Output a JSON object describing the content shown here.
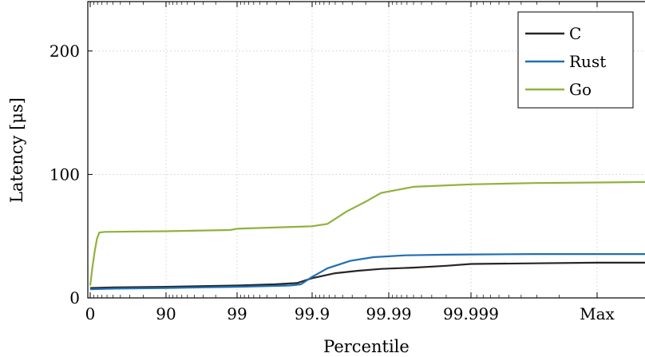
{
  "chart_data": {
    "type": "line",
    "xlabel": "Percentile",
    "ylabel": "Latency [μs]",
    "x_ticks": [
      "0",
      "90",
      "99",
      "99.9",
      "99.99",
      "99.999",
      "Max"
    ],
    "y_ticks": [
      0,
      100,
      200
    ],
    "ylim": [
      0,
      240
    ],
    "grid": true,
    "legend_position": "top-right",
    "series": [
      {
        "name": "C",
        "color": "#262626",
        "x": [
          0,
          0.3,
          1,
          2,
          2.5,
          2.8,
          3.0,
          3.3,
          3.6,
          3.9,
          4.3,
          4.7,
          5.0,
          5.5,
          6.0,
          6.5
        ],
        "y": [
          8,
          8.5,
          9,
          10,
          11,
          12,
          16,
          20,
          22,
          23.5,
          24.5,
          26,
          27.5,
          28,
          28.5,
          28.5
        ]
      },
      {
        "name": "Rust",
        "color": "#1f6fb4",
        "x": [
          0,
          0.3,
          1,
          2,
          2.7,
          2.85,
          3.0,
          3.2,
          3.5,
          3.8,
          4.2,
          4.7,
          5.0,
          5.5,
          6.0,
          6.5
        ],
        "y": [
          7,
          7.5,
          8,
          9,
          10,
          11,
          17,
          24,
          30,
          33,
          34.5,
          35,
          35.2,
          35.5,
          35.5,
          35.5
        ]
      },
      {
        "name": "Go",
        "color": "#8db33c",
        "x": [
          0,
          0.03,
          0.06,
          0.09,
          0.12,
          0.2,
          1,
          1.9,
          2.0,
          3.0,
          3.2,
          3.45,
          3.7,
          3.9,
          4.3,
          5.0,
          5.5,
          6.0,
          6.5
        ],
        "y": [
          10,
          25,
          38,
          48,
          53,
          53.5,
          54,
          55,
          56,
          58,
          60,
          70,
          78,
          85,
          90,
          92,
          93,
          93.5,
          94
        ]
      }
    ]
  }
}
